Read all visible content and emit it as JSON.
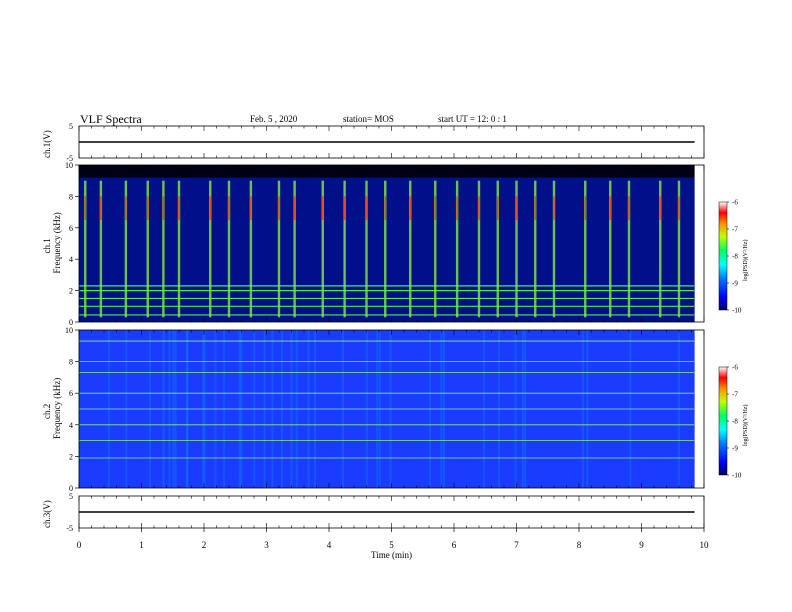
{
  "header": {
    "title": "VLF Spectra",
    "date": "Feb. 5 , 2020",
    "station": "station= MOS",
    "start": "start  UT  =   12: 0   : 1"
  },
  "colors": {
    "colormap": [
      "#00007f",
      "#0000ff",
      "#00bfff",
      "#00ff7f",
      "#bfff00",
      "#ffbf00",
      "#ff2a00",
      "#ffffff"
    ]
  },
  "chart_data": [
    {
      "type": "line",
      "panel": "ch1-waveform",
      "ylabel": "ch.1(V)",
      "ylim": [
        -5,
        5
      ],
      "yticks": [
        "5",
        "-5"
      ],
      "x": [
        0,
        9.85
      ],
      "values": [
        0,
        0
      ]
    },
    {
      "type": "heatmap",
      "panel": "ch1-spectrogram",
      "ylabel_channel": "ch.1",
      "ylabel": "Frequency  (kHz)",
      "ylim": [
        0,
        10
      ],
      "yticks": [
        "0",
        "2",
        "4",
        "6",
        "8",
        "10"
      ],
      "xlim": [
        0,
        9.85
      ],
      "colorbar": {
        "label": "log(PSD)(V²/Hz)",
        "range": [
          -10,
          -6
        ],
        "ticks": [
          "-6",
          "-7",
          "-8",
          "-9",
          "-10"
        ]
      },
      "horizontal_lines_khz": [
        0.45,
        1.0,
        1.5,
        2.0,
        2.3,
        9.3
      ],
      "bursts_min": [
        0.1,
        0.35,
        0.75,
        1.1,
        1.35,
        1.6,
        2.1,
        2.4,
        2.75,
        3.2,
        3.45,
        3.9,
        4.25,
        4.6,
        4.9,
        5.3,
        5.7,
        6.05,
        6.4,
        6.7,
        7.0,
        7.3,
        7.6,
        8.1,
        8.5,
        8.8,
        9.3,
        9.6
      ]
    },
    {
      "type": "heatmap",
      "panel": "ch2-spectrogram",
      "ylabel_channel": "ch.2",
      "ylabel": "Frequency  (kHz)",
      "ylim": [
        0,
        10
      ],
      "yticks": [
        "0",
        "2",
        "4",
        "6",
        "8",
        "10"
      ],
      "xlim": [
        0,
        9.85
      ],
      "colorbar": {
        "label": "log(PSD)(V²/Hz)",
        "range": [
          -10,
          -6
        ],
        "ticks": [
          "-6",
          "-7",
          "-8",
          "-9",
          "-10"
        ]
      },
      "horizontal_lines_khz": [
        1.9,
        3.0,
        4.0,
        5.0,
        6.0,
        7.3,
        8.0,
        9.3
      ]
    },
    {
      "type": "line",
      "panel": "ch3-waveform",
      "ylabel": "ch.3(V)",
      "ylim": [
        -5,
        5
      ],
      "yticks": [
        "5",
        "-5"
      ],
      "x": [
        0,
        9.85
      ],
      "values": [
        0,
        0
      ]
    }
  ],
  "xaxis": {
    "label": "Time  (min)",
    "range": [
      0,
      10
    ],
    "ticks": [
      "0",
      "1",
      "2",
      "3",
      "4",
      "5",
      "6",
      "7",
      "8",
      "9",
      "10"
    ]
  }
}
